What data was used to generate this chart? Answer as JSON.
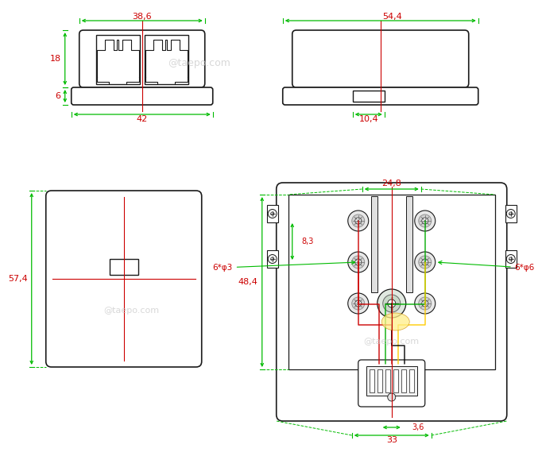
{
  "bg_color": "#ffffff",
  "line_color": "#1a1a1a",
  "dim_color": "#00bb00",
  "center_color": "#cc0000",
  "watermark": "@taepo.com",
  "watermark_color": "#c8c8c8",
  "dims": {
    "tl_38_6": "38,6",
    "tl_42": "42",
    "tl_18": "18",
    "tl_6": "6",
    "tr_54_4": "54,4",
    "tr_10_4": "10,4",
    "bl_57_4": "57,4",
    "br_24_8": "24,8",
    "br_48_4": "48,4",
    "br_8_3": "8,3",
    "br_33": "33",
    "br_3_6": "3,6",
    "br_6phi3": "6*φ3",
    "br_6phi6": "6*φ6"
  }
}
